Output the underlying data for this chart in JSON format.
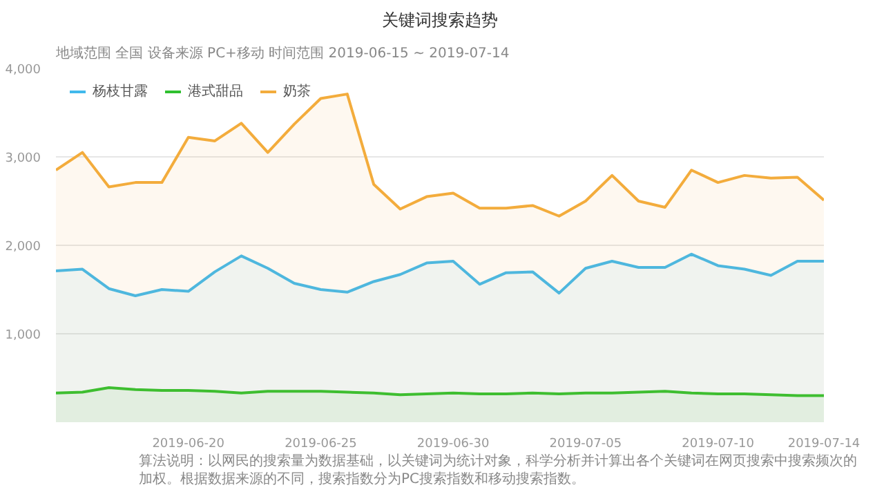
{
  "chart_data": {
    "type": "area",
    "title": "关键词搜索趋势",
    "subtitle": "地域范围  全国      设备来源  PC+移动      时间范围  2019-06-15 ~ 2019-07-14",
    "x": [
      "2019-06-15",
      "2019-06-16",
      "2019-06-17",
      "2019-06-18",
      "2019-06-19",
      "2019-06-20",
      "2019-06-21",
      "2019-06-22",
      "2019-06-23",
      "2019-06-24",
      "2019-06-25",
      "2019-06-26",
      "2019-06-27",
      "2019-06-28",
      "2019-06-29",
      "2019-06-30",
      "2019-07-01",
      "2019-07-02",
      "2019-07-03",
      "2019-07-04",
      "2019-07-05",
      "2019-07-06",
      "2019-07-07",
      "2019-07-08",
      "2019-07-09",
      "2019-07-10",
      "2019-07-11",
      "2019-07-12",
      "2019-07-13",
      "2019-07-14"
    ],
    "series": [
      {
        "name": "杨枝甘露",
        "color": "#41b9ec",
        "values": [
          1710,
          1730,
          1510,
          1430,
          1500,
          1480,
          1700,
          1880,
          1740,
          1570,
          1500,
          1470,
          1590,
          1670,
          1800,
          1820,
          1560,
          1690,
          1700,
          1460,
          1740,
          1820,
          1750,
          1750,
          1900,
          1770,
          1730,
          1660,
          1820,
          1820
        ]
      },
      {
        "name": "港式甜品",
        "color": "#2fc02f",
        "values": [
          330,
          340,
          390,
          370,
          360,
          360,
          350,
          330,
          350,
          350,
          350,
          340,
          330,
          310,
          320,
          330,
          320,
          320,
          330,
          320,
          330,
          330,
          340,
          350,
          330,
          320,
          320,
          310,
          300,
          300
        ]
      },
      {
        "name": "奶茶",
        "color": "#f3ac3c",
        "values": [
          2850,
          3050,
          2660,
          2710,
          2710,
          3220,
          3180,
          3380,
          3050,
          3370,
          3660,
          3710,
          2690,
          2410,
          2550,
          2590,
          2420,
          2420,
          2450,
          2330,
          2500,
          2790,
          2500,
          2430,
          2850,
          2710,
          2790,
          2760,
          2770,
          2510
        ]
      }
    ],
    "xlim": [
      "2019-06-15",
      "2019-07-14"
    ],
    "xticks": [
      "2019-06-20",
      "2019-06-25",
      "2019-06-30",
      "2019-07-05",
      "2019-07-10",
      "2019-07-14"
    ],
    "ylim": [
      0,
      4000
    ],
    "yticks": [
      {
        "value": 1000,
        "label": "1,000"
      },
      {
        "value": 2000,
        "label": "2,000"
      },
      {
        "value": 3000,
        "label": "3,000"
      },
      {
        "value": 4000,
        "label": "4,000"
      }
    ],
    "grid": "y",
    "legend": "top left",
    "annotations": [
      "算法说明：以网民的搜索量为数据基础，以关键词为统计对象，科学分析并计算出各个关键词在网页搜索中搜索频次的加权。根据数据来源的不同，搜索指数分为PC搜索指数和移动搜索指数。"
    ]
  }
}
